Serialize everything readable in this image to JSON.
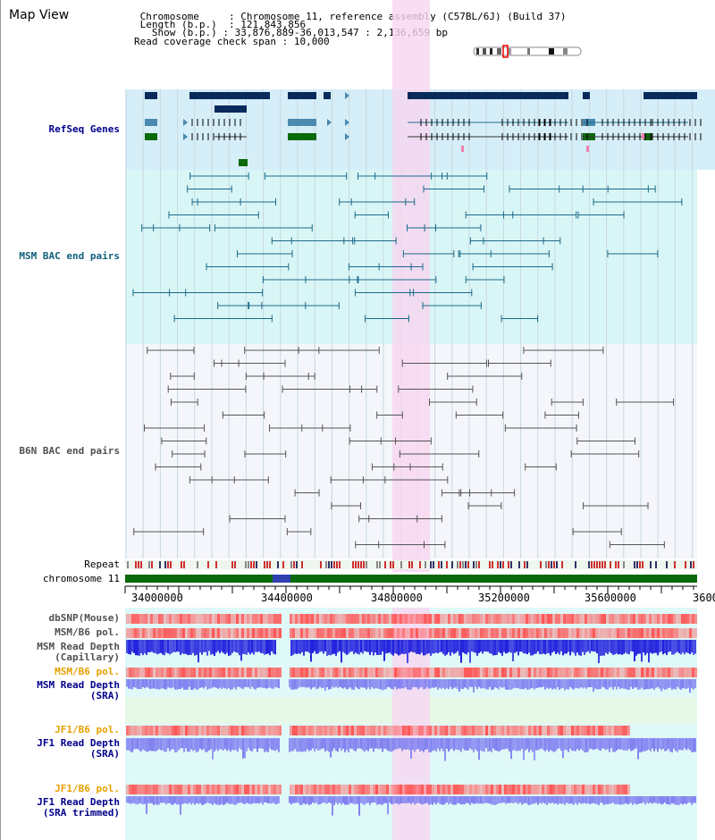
{
  "window": {
    "title": "Map View"
  },
  "region": {
    "chromosome_label": "Chromosome",
    "chromosome_value": "Chromosome 11, reference assembly (C57BL/6J) (Build 37)",
    "length_label": "Length (b.p.)",
    "length_value": "121,843,856",
    "show_label": "Show (b.p.)",
    "show_value": "33,876,889-36,013,547 : 2,136,659 bp",
    "coverage_label": "Read coverage check span",
    "coverage_value": "10,000"
  },
  "tracks": {
    "refseq": "RefSeq Genes",
    "msm_bac": "MSM BAC end pairs",
    "b6n_bac": "B6N BAC end pairs",
    "repeat": "Repeat",
    "chromosome": "chromosome 11",
    "dbsnp": "dbSNP(Mouse)",
    "msm_b6_pol_1": "MSM/B6 pol.",
    "msm_depth_cap_1": "MSM Read Depth",
    "msm_depth_cap_2": "(Capillary)",
    "msm_b6_pol_2": "MSM/B6 pol.",
    "msm_depth_sra_1": "MSM Read Depth",
    "msm_depth_sra_2": "(SRA)",
    "jf1_b6_pol_1": "JF1/B6 pol.",
    "jf1_depth_sra_1": "JF1 Read Depth",
    "jf1_depth_sra_2": "(SRA)",
    "jf1_b6_pol_2": "JF1/B6 pol.",
    "jf1_depth_trim_1": "JF1 Read Depth",
    "jf1_depth_trim_2": "(SRA trimmed)"
  },
  "axis": {
    "ticks": [
      "34000000",
      "34400000",
      "34800000",
      "35200000",
      "35600000",
      "3600"
    ]
  },
  "colors": {
    "highlight": "#f7d6f0",
    "refseq_bg": "#d6eef8",
    "msm_bg": "#d9f6f6",
    "b6n_bg": "#f4f6fb",
    "gene_navy": "#0a2a5c",
    "gene_blue": "#4a8ab0",
    "gene_green": "#0a6a0a",
    "msm_line": "#1a6a8a",
    "b6n_line": "#555555",
    "chromosome_green": "#0a6a0a",
    "depth_blue": "#2020dd",
    "depth_light": "#8080f0",
    "pol_red": "#ff5555"
  }
}
